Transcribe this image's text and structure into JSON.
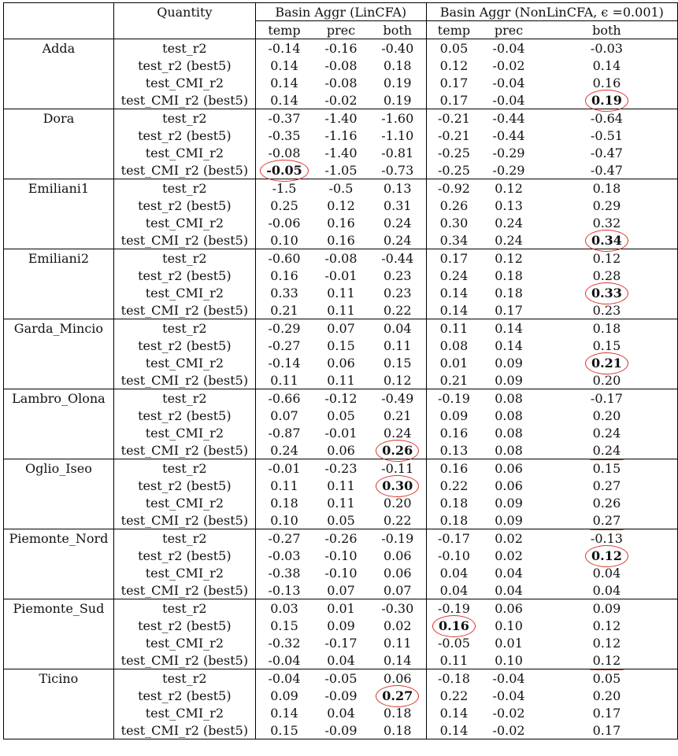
{
  "header": {
    "quantity": "Quantity",
    "lin_group": "Basin Aggr (LinCFA)",
    "nonlin_group": "Basin Aggr (NonLinCFA, ϵ =0.001)",
    "sub": [
      "temp",
      "prec",
      "both",
      "temp",
      "prec",
      "both"
    ]
  },
  "basins": [
    {
      "name": "Adda",
      "rows": [
        {
          "q": "test_r2",
          "v": [
            "-0.14",
            "-0.16",
            "-0.40",
            "0.05",
            "-0.04",
            "-0.03"
          ]
        },
        {
          "q": "test_r2 (best5)",
          "v": [
            "0.14",
            "-0.08",
            "0.18",
            "0.12",
            "-0.02",
            "0.14"
          ]
        },
        {
          "q": "test_CMI_r2",
          "v": [
            "0.14",
            "-0.08",
            "0.19",
            "0.17",
            "-0.04",
            "0.16"
          ]
        },
        {
          "q": "test_CMI_r2 (best5)",
          "v": [
            "0.14",
            "-0.02",
            "0.19",
            "0.17",
            "-0.04",
            "0.19"
          ]
        }
      ]
    },
    {
      "name": "Dora",
      "rows": [
        {
          "q": "test_r2",
          "v": [
            "-0.37",
            "-1.40",
            "-1.60",
            "-0.21",
            "-0.44",
            "-0.64"
          ]
        },
        {
          "q": "test_r2 (best5)",
          "v": [
            "-0.35",
            "-1.16",
            "-1.10",
            "-0.21",
            "-0.44",
            "-0.51"
          ]
        },
        {
          "q": "test_CMI_r2",
          "v": [
            "-0.08",
            "-1.40",
            "-0.81",
            "-0.25",
            "-0.29",
            "-0.47"
          ]
        },
        {
          "q": "test_CMI_r2 (best5)",
          "v": [
            "-0.05",
            "-1.05",
            "-0.73",
            "-0.25",
            "-0.29",
            "-0.47"
          ]
        }
      ]
    },
    {
      "name": "Emiliani1",
      "rows": [
        {
          "q": "test_r2",
          "v": [
            "-1.5",
            "-0.5",
            "0.13",
            "-0.92",
            "0.12",
            "0.18"
          ]
        },
        {
          "q": "test_r2 (best5)",
          "v": [
            "0.25",
            "0.12",
            "0.31",
            "0.26",
            "0.13",
            "0.29"
          ]
        },
        {
          "q": "test_CMI_r2",
          "v": [
            "-0.06",
            "0.16",
            "0.24",
            "0.30",
            "0.24",
            "0.32"
          ]
        },
        {
          "q": "test_CMI_r2 (best5)",
          "v": [
            "0.10",
            "0.16",
            "0.24",
            "0.34",
            "0.24",
            "0.34"
          ]
        }
      ]
    },
    {
      "name": "Emiliani2",
      "rows": [
        {
          "q": "test_r2",
          "v": [
            "-0.60",
            "-0.08",
            "-0.44",
            "0.17",
            "0.12",
            "0.12"
          ]
        },
        {
          "q": "test_r2 (best5)",
          "v": [
            "0.16",
            "-0.01",
            "0.23",
            "0.24",
            "0.18",
            "0.28"
          ]
        },
        {
          "q": "test_CMI_r2",
          "v": [
            "0.33",
            "0.11",
            "0.23",
            "0.14",
            "0.18",
            "0.33"
          ]
        },
        {
          "q": "test_CMI_r2 (best5)",
          "v": [
            "0.21",
            "0.11",
            "0.22",
            "0.14",
            "0.17",
            "0.23"
          ]
        }
      ]
    },
    {
      "name": "Garda_Mincio",
      "rows": [
        {
          "q": "test_r2",
          "v": [
            "-0.29",
            "0.07",
            "0.04",
            "0.11",
            "0.14",
            "0.18"
          ]
        },
        {
          "q": "test_r2 (best5)",
          "v": [
            "-0.27",
            "0.15",
            "0.11",
            "0.08",
            "0.14",
            "0.15"
          ]
        },
        {
          "q": "test_CMI_r2",
          "v": [
            "-0.14",
            "0.06",
            "0.15",
            "0.01",
            "0.09",
            "0.21"
          ]
        },
        {
          "q": "test_CMI_r2 (best5)",
          "v": [
            "0.11",
            "0.11",
            "0.12",
            "0.21",
            "0.09",
            "0.20"
          ]
        }
      ]
    },
    {
      "name": "Lambro_Olona",
      "rows": [
        {
          "q": "test_r2",
          "v": [
            "-0.66",
            "-0.12",
            "-0.49",
            "-0.19",
            "0.08",
            "-0.17"
          ]
        },
        {
          "q": "test_r2 (best5)",
          "v": [
            "0.07",
            "0.05",
            "0.21",
            "0.09",
            "0.08",
            "0.20"
          ]
        },
        {
          "q": "test_CMI_r2",
          "v": [
            "-0.87",
            "-0.01",
            "0.24",
            "0.16",
            "0.08",
            "0.24"
          ]
        },
        {
          "q": "test_CMI_r2 (best5)",
          "v": [
            "0.24",
            "0.06",
            "0.26",
            "0.13",
            "0.08",
            "0.24"
          ]
        }
      ]
    },
    {
      "name": "Oglio_Iseo",
      "rows": [
        {
          "q": "test_r2",
          "v": [
            "-0.01",
            "-0.23",
            "-0.11",
            "0.16",
            "0.06",
            "0.15"
          ]
        },
        {
          "q": "test_r2 (best5)",
          "v": [
            "0.11",
            "0.11",
            "0.30",
            "0.22",
            "0.06",
            "0.27"
          ]
        },
        {
          "q": "test_CMI_r2",
          "v": [
            "0.18",
            "0.11",
            "0.20",
            "0.18",
            "0.09",
            "0.26"
          ]
        },
        {
          "q": "test_CMI_r2 (best5)",
          "v": [
            "0.10",
            "0.05",
            "0.22",
            "0.18",
            "0.09",
            "0.27"
          ]
        }
      ]
    },
    {
      "name": "Piemonte_Nord",
      "rows": [
        {
          "q": "test_r2",
          "v": [
            "-0.27",
            "-0.26",
            "-0.19",
            "-0.17",
            "0.02",
            "-0.13"
          ]
        },
        {
          "q": "test_r2 (best5)",
          "v": [
            "-0.03",
            "-0.10",
            "0.06",
            "-0.10",
            "0.02",
            "0.12"
          ]
        },
        {
          "q": "test_CMI_r2",
          "v": [
            "-0.38",
            "-0.10",
            "0.06",
            "0.04",
            "0.04",
            "0.04"
          ]
        },
        {
          "q": "test_CMI_r2 (best5)",
          "v": [
            "-0.13",
            "0.07",
            "0.07",
            "0.04",
            "0.04",
            "0.04"
          ]
        }
      ]
    },
    {
      "name": "Piemonte_Sud",
      "rows": [
        {
          "q": "test_r2",
          "v": [
            "0.03",
            "0.01",
            "-0.30",
            "-0.19",
            "0.06",
            "0.09"
          ]
        },
        {
          "q": "test_r2 (best5)",
          "v": [
            "0.15",
            "0.09",
            "0.02",
            "0.16",
            "0.10",
            "0.12"
          ]
        },
        {
          "q": "test_CMI_r2",
          "v": [
            "-0.32",
            "-0.17",
            "0.11",
            "-0.05",
            "0.01",
            "0.12"
          ]
        },
        {
          "q": "test_CMI_r2 (best5)",
          "v": [
            "-0.04",
            "0.04",
            "0.14",
            "0.11",
            "0.10",
            "0.12"
          ]
        }
      ]
    },
    {
      "name": "Ticino",
      "rows": [
        {
          "q": "test_r2",
          "v": [
            "-0.04",
            "-0.05",
            "0.06",
            "-0.18",
            "-0.04",
            "0.05"
          ]
        },
        {
          "q": "test_r2 (best5)",
          "v": [
            "0.09",
            "-0.09",
            "0.27",
            "0.22",
            "-0.04",
            "0.20"
          ]
        },
        {
          "q": "test_CMI_r2",
          "v": [
            "0.14",
            "0.04",
            "0.18",
            "0.14",
            "-0.02",
            "0.17"
          ]
        },
        {
          "q": "test_CMI_r2 (best5)",
          "v": [
            "0.15",
            "-0.09",
            "0.18",
            "0.14",
            "-0.02",
            "0.17"
          ]
        }
      ]
    }
  ],
  "highlights": [
    {
      "b": 0,
      "r": 3,
      "c": 5,
      "mark": "circle"
    },
    {
      "b": 1,
      "r": 3,
      "c": 0,
      "mark": "circle"
    },
    {
      "b": 2,
      "r": 3,
      "c": 5,
      "mark": "circle"
    },
    {
      "b": 3,
      "r": 2,
      "c": 5,
      "mark": "circle"
    },
    {
      "b": 4,
      "r": 2,
      "c": 5,
      "mark": "circle"
    },
    {
      "b": 5,
      "r": 3,
      "c": 2,
      "mark": "circle"
    },
    {
      "b": 5,
      "r": 3,
      "c": 5,
      "mark": "underline"
    },
    {
      "b": 6,
      "r": 1,
      "c": 2,
      "mark": "circle"
    },
    {
      "b": 6,
      "r": 3,
      "c": 5,
      "mark": "underline"
    },
    {
      "b": 7,
      "r": 1,
      "c": 5,
      "mark": "circle"
    },
    {
      "b": 8,
      "r": 1,
      "c": 3,
      "mark": "circle"
    },
    {
      "b": 8,
      "r": 3,
      "c": 5,
      "mark": "underline"
    },
    {
      "b": 9,
      "r": 1,
      "c": 2,
      "mark": "circle"
    }
  ],
  "annotation_color": "#d9342b"
}
